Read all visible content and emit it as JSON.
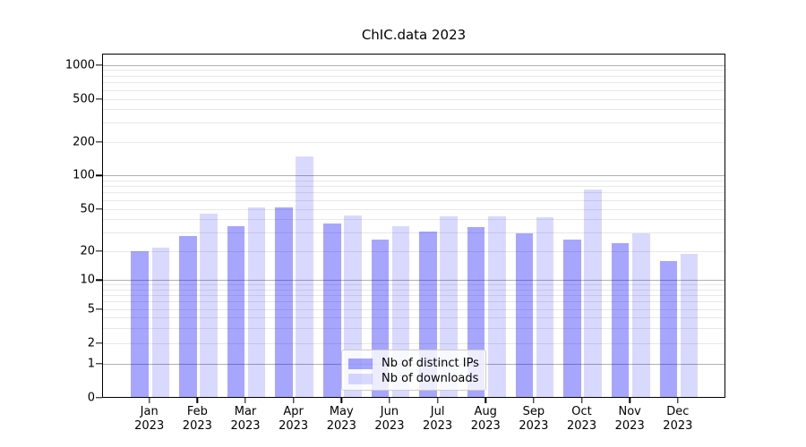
{
  "title": "ChIC.data 2023",
  "chart_data": {
    "type": "bar",
    "title": "ChIC.data 2023",
    "x_months": [
      "Jan",
      "Feb",
      "Mar",
      "Apr",
      "May",
      "Jun",
      "Jul",
      "Aug",
      "Sep",
      "Oct",
      "Nov",
      "Dec"
    ],
    "x_year": "2023",
    "categories": [
      "Jan 2023",
      "Feb 2023",
      "Mar 2023",
      "Apr 2023",
      "May 2023",
      "Jun 2023",
      "Jul 2023",
      "Aug 2023",
      "Sep 2023",
      "Oct 2023",
      "Nov 2023",
      "Dec 2023"
    ],
    "series": [
      {
        "name": "Nb of distinct IPs",
        "color": "rgba(0,0,255,0.35)",
        "values": [
          20,
          28,
          35,
          52,
          37,
          26,
          31,
          34,
          30,
          26,
          24,
          16
        ]
      },
      {
        "name": "Nb of downloads",
        "color": "rgba(0,0,255,0.15)",
        "values": [
          22,
          46,
          52,
          150,
          44,
          35,
          43,
          43,
          42,
          75,
          30,
          19
        ]
      }
    ],
    "y_ticks": [
      0,
      1,
      2,
      5,
      10,
      20,
      50,
      100,
      200,
      500,
      1000
    ],
    "y_major_grid_values": [
      1,
      10,
      100,
      1000
    ],
    "y_scale": "asinh-log (linear 0-1, logarithmic above)",
    "xlabel": "",
    "ylabel": "",
    "grid": "major and minor horizontal gridlines",
    "legend_position": "lower center"
  },
  "legend": {
    "items": [
      {
        "label": "Nb of distinct IPs",
        "color": "rgba(0,0,255,0.35)"
      },
      {
        "label": "Nb of downloads",
        "color": "rgba(0,0,255,0.15)"
      }
    ]
  },
  "colors": {
    "background": "#ffffff",
    "axis": "#000000",
    "grid_major": "#b0b0b0",
    "grid_minor": "#e8e8e8",
    "legend_border": "#cccccc",
    "bar_distinct_ips": "rgba(0,0,255,0.35)",
    "bar_downloads": "rgba(0,0,255,0.15)"
  }
}
